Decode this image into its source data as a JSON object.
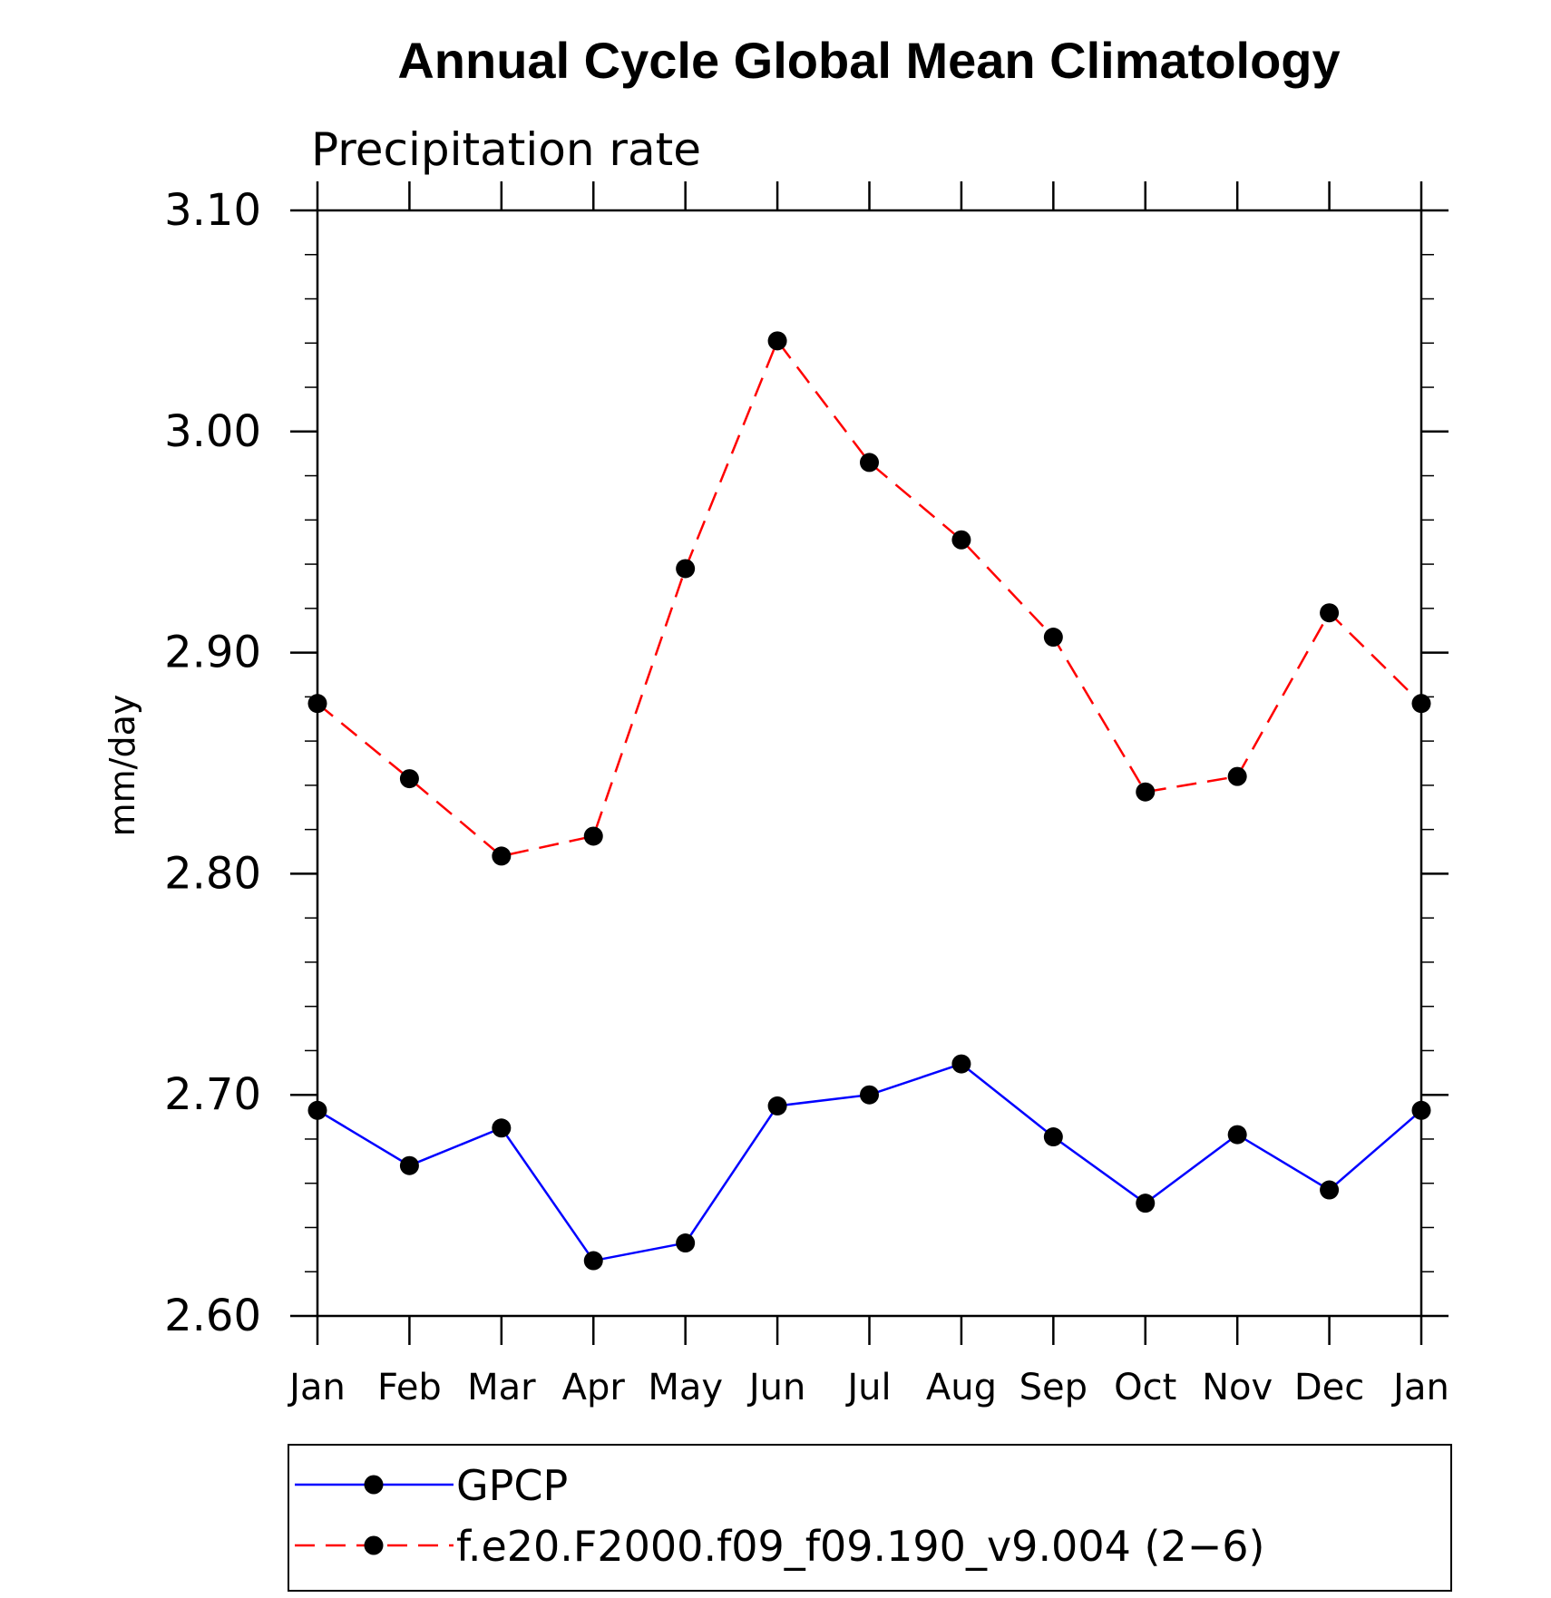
{
  "chart_data": {
    "type": "line",
    "title": "Annual Cycle Global Mean Climatology",
    "subtitle": "Precipitation rate",
    "xlabel": "",
    "ylabel": "mm/day",
    "categories": [
      "Jan",
      "Feb",
      "Mar",
      "Apr",
      "May",
      "Jun",
      "Jul",
      "Aug",
      "Sep",
      "Oct",
      "Nov",
      "Dec",
      "Jan"
    ],
    "ylim": [
      2.6,
      3.1
    ],
    "yticks": [
      "2.60",
      "2.70",
      "2.80",
      "2.90",
      "3.00",
      "3.10"
    ],
    "legend_position": "bottom",
    "grid": false,
    "series": [
      {
        "name": "GPCP",
        "color": "#0000ff",
        "line_style": "solid",
        "marker": "filled-circle",
        "values": [
          2.693,
          2.668,
          2.685,
          2.625,
          2.633,
          2.695,
          2.7,
          2.714,
          2.681,
          2.651,
          2.682,
          2.657,
          2.693
        ]
      },
      {
        "name": "f.e20.F2000.f09_f09.190_v9.004 (2−6)",
        "color": "#ff0000",
        "line_style": "dashed",
        "marker": "filled-circle",
        "values": [
          2.877,
          2.843,
          2.808,
          2.817,
          2.938,
          3.041,
          2.986,
          2.951,
          2.907,
          2.837,
          2.844,
          2.918,
          2.877
        ]
      }
    ]
  }
}
